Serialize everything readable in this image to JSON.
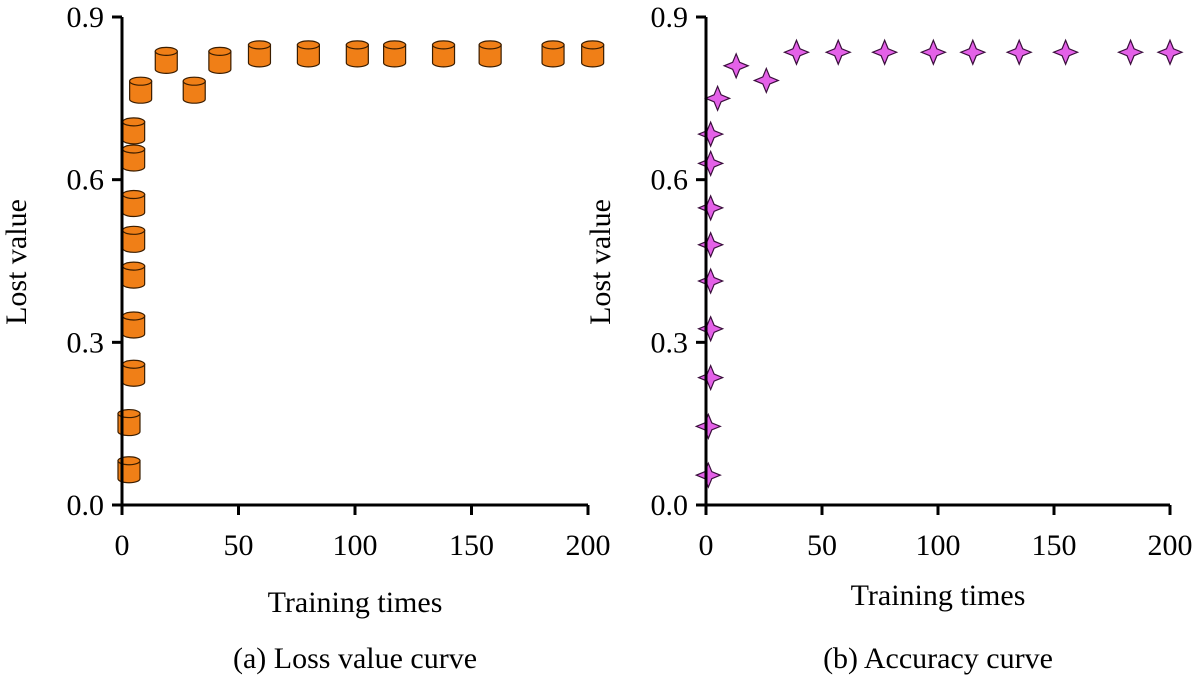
{
  "chart_data": [
    {
      "type": "scatter",
      "caption": "(a) Loss value curve",
      "xlabel": "Training times",
      "ylabel": "Lost value",
      "xlim": [
        0,
        200
      ],
      "ylim": [
        0,
        0.9
      ],
      "xticks": [
        0,
        50,
        100,
        150,
        200
      ],
      "yticks": [
        0.0,
        0.3,
        0.6,
        0.9
      ],
      "ytick_labels": [
        "0.0",
        "0.3",
        "0.6",
        "0.9"
      ],
      "grid": false,
      "marker": "cylinder",
      "color": "#F07F17",
      "points": [
        {
          "x": 3,
          "y": 0.065
        },
        {
          "x": 3,
          "y": 0.152
        },
        {
          "x": 5,
          "y": 0.243
        },
        {
          "x": 5,
          "y": 0.332
        },
        {
          "x": 5,
          "y": 0.424
        },
        {
          "x": 5,
          "y": 0.49
        },
        {
          "x": 5,
          "y": 0.556
        },
        {
          "x": 5,
          "y": 0.64
        },
        {
          "x": 5,
          "y": 0.69
        },
        {
          "x": 8,
          "y": 0.765
        },
        {
          "x": 19,
          "y": 0.82
        },
        {
          "x": 31,
          "y": 0.765
        },
        {
          "x": 42,
          "y": 0.82
        },
        {
          "x": 59,
          "y": 0.832
        },
        {
          "x": 80,
          "y": 0.832
        },
        {
          "x": 101,
          "y": 0.832
        },
        {
          "x": 117,
          "y": 0.832
        },
        {
          "x": 138,
          "y": 0.832
        },
        {
          "x": 158,
          "y": 0.832
        },
        {
          "x": 185,
          "y": 0.832
        },
        {
          "x": 202,
          "y": 0.832
        }
      ]
    },
    {
      "type": "scatter",
      "caption": "(b) Accuracy curve",
      "xlabel": "Training times",
      "ylabel": "Lost value",
      "xlim": [
        0,
        200
      ],
      "ylim": [
        0,
        0.9
      ],
      "xticks": [
        0,
        50,
        100,
        150,
        200
      ],
      "yticks": [
        0.0,
        0.3,
        0.6,
        0.9
      ],
      "ytick_labels": [
        "0.0",
        "0.3",
        "0.6",
        "0.9"
      ],
      "grid": false,
      "marker": "star4",
      "color": "#E461E8",
      "points": [
        {
          "x": 1,
          "y": 0.055
        },
        {
          "x": 1,
          "y": 0.145
        },
        {
          "x": 2,
          "y": 0.235
        },
        {
          "x": 2,
          "y": 0.325
        },
        {
          "x": 2,
          "y": 0.413
        },
        {
          "x": 2,
          "y": 0.48
        },
        {
          "x": 2,
          "y": 0.548
        },
        {
          "x": 2,
          "y": 0.63
        },
        {
          "x": 2,
          "y": 0.684
        },
        {
          "x": 5,
          "y": 0.75
        },
        {
          "x": 13,
          "y": 0.81
        },
        {
          "x": 26,
          "y": 0.783
        },
        {
          "x": 39,
          "y": 0.835
        },
        {
          "x": 57,
          "y": 0.835
        },
        {
          "x": 77,
          "y": 0.835
        },
        {
          "x": 98,
          "y": 0.835
        },
        {
          "x": 115,
          "y": 0.835
        },
        {
          "x": 135,
          "y": 0.835
        },
        {
          "x": 155,
          "y": 0.835
        },
        {
          "x": 183,
          "y": 0.835
        },
        {
          "x": 200,
          "y": 0.835
        }
      ]
    }
  ]
}
